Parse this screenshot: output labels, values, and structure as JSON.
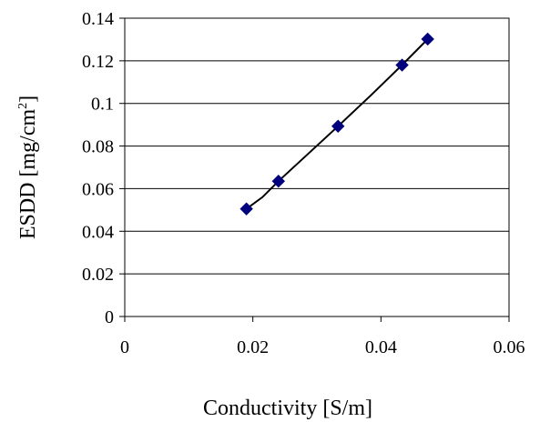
{
  "chart_data": {
    "type": "scatter",
    "xlabel": "Conductivity [S/m]",
    "ylabel": {
      "main": "ESDD [mg/cm",
      "sup": "2",
      "end": "]"
    },
    "xlim": [
      0,
      0.06
    ],
    "ylim": [
      0,
      0.14
    ],
    "xticks": [
      0,
      0.02,
      0.04,
      0.06
    ],
    "xtick_labels": [
      "0",
      "0.02",
      "0.04",
      "0.06"
    ],
    "yticks": [
      0,
      0.02,
      0.04,
      0.06,
      0.08,
      0.1,
      0.12,
      0.14
    ],
    "ytick_labels": [
      "0",
      "0.02",
      "0.04",
      "0.06",
      "0.08",
      "0.1",
      "0.12",
      "0.14"
    ],
    "grid": "horizontal",
    "legend": "none",
    "series": [
      {
        "marker": "diamond",
        "color": "#00007f",
        "x": [
          0.019,
          0.024,
          0.0333,
          0.0433,
          0.0473
        ],
        "y": [
          0.0505,
          0.0635,
          0.0893,
          0.118,
          0.1302
        ]
      }
    ],
    "trendline": {
      "color": "#000000",
      "x": [
        0.019,
        0.0215,
        0.024,
        0.0333,
        0.0385,
        0.0433,
        0.0473
      ],
      "y": [
        0.0505,
        0.056,
        0.0635,
        0.0893,
        0.104,
        0.118,
        0.1302
      ]
    }
  }
}
